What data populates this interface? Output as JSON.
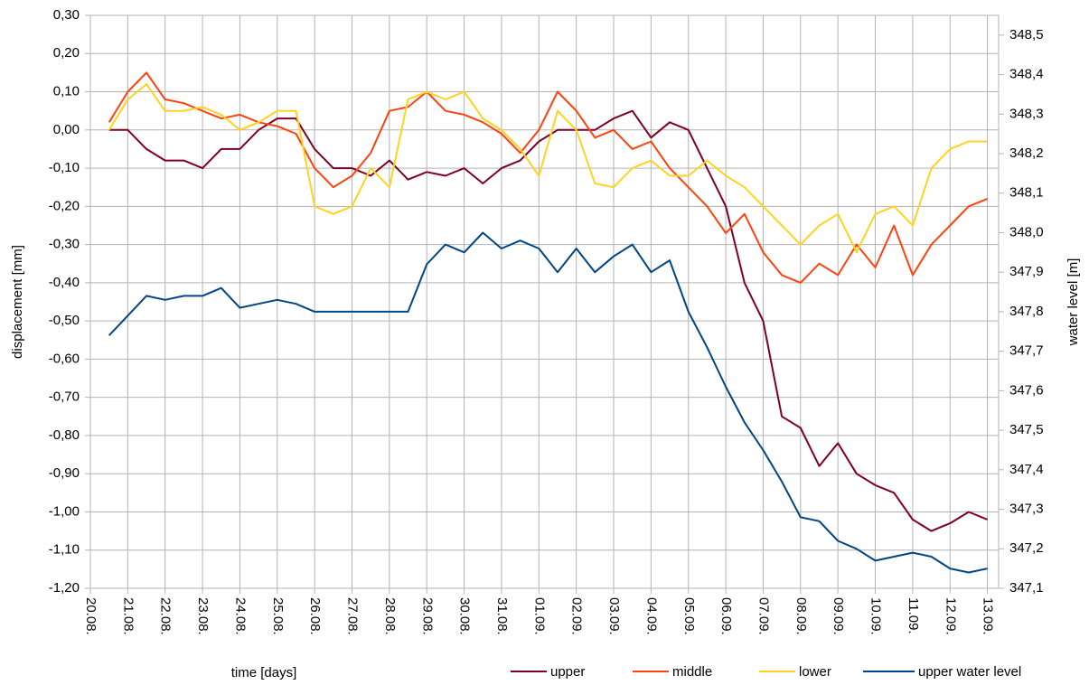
{
  "chart_data": {
    "type": "line",
    "xlabel": "time [days]",
    "ylabel": "displacement [mm]",
    "y2label": "water level [m]",
    "legend": "bottom",
    "grid": true,
    "xlim": [
      0,
      24.3
    ],
    "xticks": [
      {
        "value": 0,
        "label": "20.08."
      },
      {
        "value": 1,
        "label": "21.08."
      },
      {
        "value": 2,
        "label": "22.08."
      },
      {
        "value": 3,
        "label": "23.08."
      },
      {
        "value": 4,
        "label": "24.08."
      },
      {
        "value": 5,
        "label": "25.08."
      },
      {
        "value": 6,
        "label": "26.08."
      },
      {
        "value": 7,
        "label": "27.08."
      },
      {
        "value": 8,
        "label": "28.08."
      },
      {
        "value": 9,
        "label": "29.08."
      },
      {
        "value": 10,
        "label": "30.08."
      },
      {
        "value": 11,
        "label": "31.08."
      },
      {
        "value": 12,
        "label": "01.09."
      },
      {
        "value": 13,
        "label": "02.09."
      },
      {
        "value": 14,
        "label": "03.09."
      },
      {
        "value": 15,
        "label": "04.09."
      },
      {
        "value": 16,
        "label": "05.09."
      },
      {
        "value": 17,
        "label": "06.09."
      },
      {
        "value": 18,
        "label": "07.09."
      },
      {
        "value": 19,
        "label": "08.09."
      },
      {
        "value": 20,
        "label": "09.09."
      },
      {
        "value": 21,
        "label": "10.09."
      },
      {
        "value": 22,
        "label": "11.09."
      },
      {
        "value": 23,
        "label": "12.09."
      },
      {
        "value": 24,
        "label": "13.09."
      }
    ],
    "ylim": [
      -1.2,
      0.3
    ],
    "yticks": [
      {
        "value": 0.3,
        "label": "0,30"
      },
      {
        "value": 0.2,
        "label": "0,20"
      },
      {
        "value": 0.1,
        "label": "0,10"
      },
      {
        "value": 0,
        "label": "0,00"
      },
      {
        "value": -0.1,
        "label": "-0,10"
      },
      {
        "value": -0.2,
        "label": "-0,20"
      },
      {
        "value": -0.3,
        "label": "-0,30"
      },
      {
        "value": -0.4,
        "label": "-0,40"
      },
      {
        "value": -0.5,
        "label": "-0,50"
      },
      {
        "value": -0.6,
        "label": "-0,60"
      },
      {
        "value": -0.7,
        "label": "-0,70"
      },
      {
        "value": -0.8,
        "label": "-0,80"
      },
      {
        "value": -0.9,
        "label": "-0,90"
      },
      {
        "value": -1.0,
        "label": "-1,00"
      },
      {
        "value": -1.1,
        "label": "-1,10"
      },
      {
        "value": -1.2,
        "label": "-1,20"
      }
    ],
    "y2lim": [
      347.1,
      348.55
    ],
    "y2ticks": [
      {
        "value": 348.5,
        "label": "348,5"
      },
      {
        "value": 348.4,
        "label": "348,4"
      },
      {
        "value": 348.3,
        "label": "348,3"
      },
      {
        "value": 348.2,
        "label": "348,2"
      },
      {
        "value": 348.1,
        "label": "348,1"
      },
      {
        "value": 348.0,
        "label": "348,0"
      },
      {
        "value": 347.9,
        "label": "347,9"
      },
      {
        "value": 347.8,
        "label": "347,8"
      },
      {
        "value": 347.7,
        "label": "347,7"
      },
      {
        "value": 347.6,
        "label": "347,6"
      },
      {
        "value": 347.5,
        "label": "347,5"
      },
      {
        "value": 347.4,
        "label": "347,4"
      },
      {
        "value": 347.3,
        "label": "347,3"
      },
      {
        "value": 347.2,
        "label": "347,2"
      },
      {
        "value": 347.1,
        "label": "347,1"
      }
    ],
    "x": [
      0.5,
      1,
      1.5,
      2,
      2.5,
      3,
      3.5,
      4,
      4.5,
      5,
      5.5,
      6,
      6.5,
      7,
      7.5,
      8,
      8.5,
      9,
      9.5,
      10,
      10.5,
      11,
      11.5,
      12,
      12.5,
      13,
      13.5,
      14,
      14.5,
      15,
      15.5,
      16,
      16.5,
      17,
      17.5,
      18,
      18.5,
      19,
      19.5,
      20,
      20.5,
      21,
      21.5,
      22,
      22.5,
      23,
      23.5,
      24
    ],
    "series": [
      {
        "name": "upper",
        "color": "#7e0021",
        "values": [
          0.0,
          0.0,
          -0.05,
          -0.08,
          -0.08,
          -0.1,
          -0.05,
          -0.05,
          0.0,
          0.03,
          0.03,
          -0.05,
          -0.1,
          -0.1,
          -0.12,
          -0.08,
          -0.13,
          -0.11,
          -0.12,
          -0.1,
          -0.14,
          -0.1,
          -0.08,
          -0.03,
          0.0,
          0.0,
          0.0,
          0.03,
          0.05,
          -0.02,
          0.02,
          0.0,
          -0.1,
          -0.2,
          -0.4,
          -0.5,
          -0.75,
          -0.78,
          -0.88,
          -0.82,
          -0.9,
          -0.93,
          -0.95,
          -1.02,
          -1.05,
          -1.03,
          -1.0,
          -1.02
        ]
      },
      {
        "name": "middle",
        "color": "#ff420e",
        "values": [
          0.02,
          0.1,
          0.15,
          0.08,
          0.07,
          0.05,
          0.03,
          0.04,
          0.02,
          0.01,
          -0.01,
          -0.1,
          -0.15,
          -0.12,
          -0.06,
          0.05,
          0.06,
          0.1,
          0.05,
          0.04,
          0.02,
          -0.01,
          -0.06,
          0.0,
          0.1,
          0.05,
          -0.02,
          0.0,
          -0.05,
          -0.03,
          -0.1,
          -0.15,
          -0.2,
          -0.27,
          -0.22,
          -0.32,
          -0.38,
          -0.4,
          -0.35,
          -0.38,
          -0.3,
          -0.36,
          -0.25,
          -0.38,
          -0.3,
          -0.25,
          -0.2,
          -0.18
        ]
      },
      {
        "name": "lower",
        "color": "#ffd320",
        "values": [
          0.0,
          0.08,
          0.12,
          0.05,
          0.05,
          0.06,
          0.04,
          0.0,
          0.02,
          0.05,
          0.05,
          -0.2,
          -0.22,
          -0.2,
          -0.1,
          -0.15,
          0.08,
          0.1,
          0.08,
          0.1,
          0.03,
          0.0,
          -0.05,
          -0.12,
          0.05,
          0.0,
          -0.14,
          -0.15,
          -0.1,
          -0.08,
          -0.12,
          -0.12,
          -0.08,
          -0.12,
          -0.15,
          -0.2,
          -0.25,
          -0.3,
          -0.25,
          -0.22,
          -0.32,
          -0.22,
          -0.2,
          -0.25,
          -0.1,
          -0.05,
          -0.03,
          -0.03
        ]
      },
      {
        "name": "upper water level",
        "color": "#004586",
        "axis": "y2",
        "values": [
          347.74,
          347.79,
          347.84,
          347.83,
          347.84,
          347.84,
          347.86,
          347.81,
          347.82,
          347.83,
          347.82,
          347.8,
          347.8,
          347.8,
          347.8,
          347.8,
          347.8,
          347.92,
          347.97,
          347.95,
          348.0,
          347.96,
          347.98,
          347.96,
          347.9,
          347.96,
          347.9,
          347.94,
          347.97,
          347.9,
          347.93,
          347.8,
          347.71,
          347.61,
          347.52,
          347.45,
          347.37,
          347.28,
          347.27,
          347.22,
          347.2,
          347.17,
          347.18,
          347.19,
          347.18,
          347.15,
          347.14,
          347.15
        ]
      }
    ]
  }
}
